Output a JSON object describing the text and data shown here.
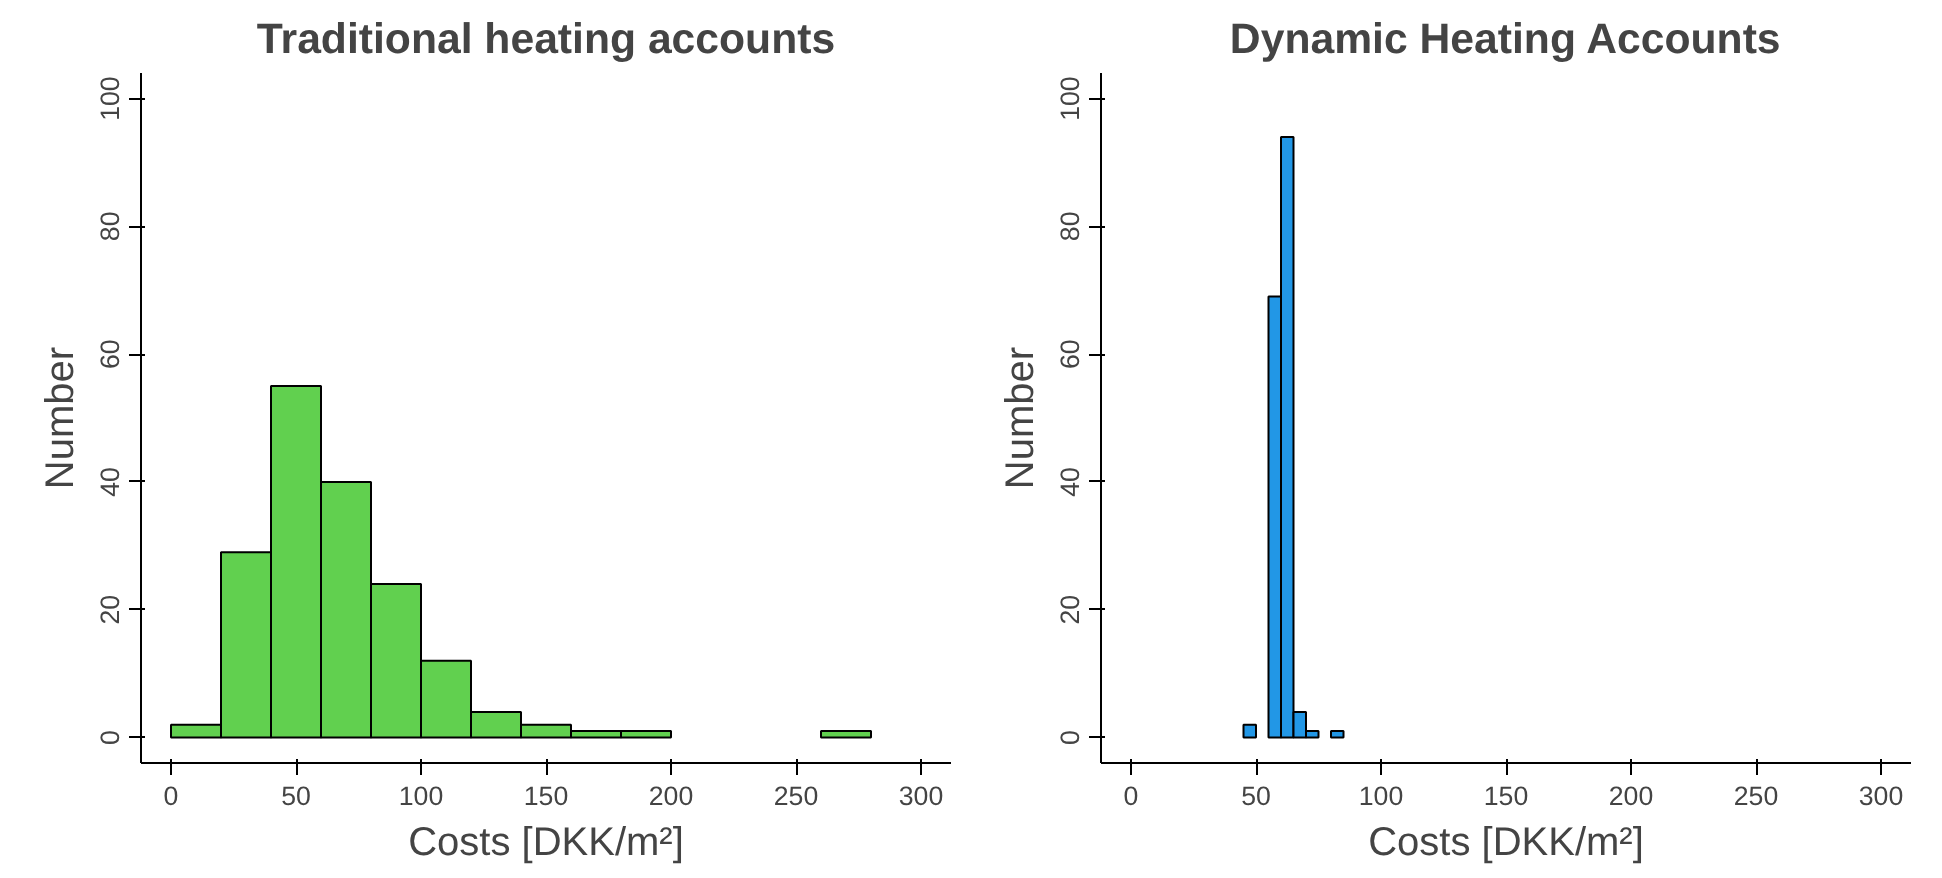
{
  "chart_data": [
    {
      "type": "histogram",
      "title": "Traditional heating accounts",
      "xlabel": "Costs [DKK/m²]",
      "ylabel": "Number",
      "color": "#61d04f",
      "bins": [
        0,
        20,
        40,
        60,
        80,
        100,
        120,
        140,
        160,
        180,
        200,
        220,
        240,
        260,
        280
      ],
      "values": [
        2,
        29,
        55,
        40,
        24,
        12,
        4,
        2,
        1,
        1,
        0,
        0,
        0,
        1
      ],
      "xlim": [
        -12,
        312
      ],
      "ylim": [
        -4,
        104
      ],
      "xticks": [
        0,
        50,
        100,
        150,
        200,
        250,
        300
      ],
      "yticks": [
        0,
        20,
        40,
        60,
        80,
        100
      ],
      "grid": false
    },
    {
      "type": "histogram",
      "title": "Dynamic Heating Accounts",
      "xlabel": "Costs [DKK/m²]",
      "ylabel": "Number",
      "color": "#2297e6",
      "bins": [
        45,
        50,
        55,
        60,
        65,
        70,
        75,
        80,
        85
      ],
      "values": [
        2,
        0,
        69,
        94,
        4,
        1,
        0,
        1
      ],
      "xlim": [
        -12,
        312
      ],
      "ylim": [
        -4,
        104
      ],
      "xticks": [
        0,
        50,
        100,
        150,
        200,
        250,
        300
      ],
      "yticks": [
        0,
        20,
        40,
        60,
        80,
        100
      ],
      "grid": false
    }
  ]
}
